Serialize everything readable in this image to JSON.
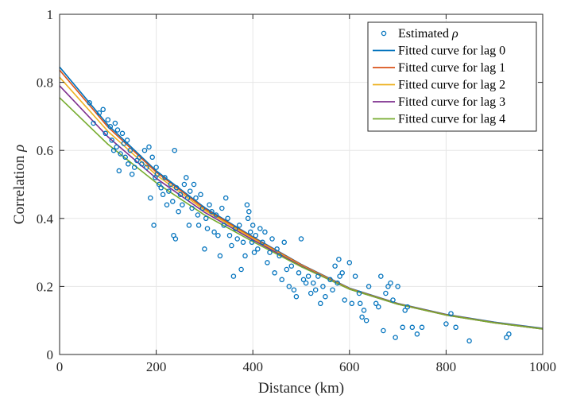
{
  "chart_data": {
    "type": "scatter",
    "xlabel": "Distance (km)",
    "ylabel_prefix": "Correlation ",
    "ylabel_symbol": "ρ",
    "xlim": [
      0,
      1000
    ],
    "ylim": [
      0,
      1
    ],
    "x_ticks": [
      "0",
      "200",
      "400",
      "600",
      "800",
      "1000"
    ],
    "y_ticks": [
      "0",
      "0.2",
      "0.4",
      "0.6",
      "0.8",
      "1"
    ],
    "grid": true,
    "legend_position": "top-right",
    "legend": [
      {
        "label_prefix": "Estimated ",
        "label_symbol": "ρ",
        "kind": "marker",
        "color": "#0072BD"
      },
      {
        "label_prefix": "Fitted curve for lag 0",
        "label_symbol": "",
        "kind": "line",
        "color": "#0072BD"
      },
      {
        "label_prefix": "Fitted curve for lag 1",
        "label_symbol": "",
        "kind": "line",
        "color": "#D95319"
      },
      {
        "label_prefix": "Fitted curve for lag 2",
        "label_symbol": "",
        "kind": "line",
        "color": "#EDB120"
      },
      {
        "label_prefix": "Fitted curve for lag 3",
        "label_symbol": "",
        "kind": "line",
        "color": "#7E2F8E"
      },
      {
        "label_prefix": "Fitted curve for lag 4",
        "label_symbol": "",
        "kind": "line",
        "color": "#77AC30"
      }
    ],
    "curves": [
      {
        "color": "#0072BD",
        "points": [
          [
            0,
            0.845
          ],
          [
            100,
            0.675
          ],
          [
            200,
            0.54
          ],
          [
            300,
            0.432
          ],
          [
            400,
            0.346
          ],
          [
            500,
            0.265
          ],
          [
            600,
            0.195
          ],
          [
            700,
            0.15
          ],
          [
            800,
            0.118
          ],
          [
            900,
            0.095
          ],
          [
            1000,
            0.077
          ]
        ]
      },
      {
        "color": "#D95319",
        "points": [
          [
            0,
            0.836
          ],
          [
            100,
            0.669
          ],
          [
            200,
            0.536
          ],
          [
            300,
            0.429
          ],
          [
            400,
            0.344
          ],
          [
            500,
            0.264
          ],
          [
            600,
            0.194
          ],
          [
            700,
            0.149
          ],
          [
            800,
            0.117
          ],
          [
            900,
            0.094
          ],
          [
            1000,
            0.076
          ]
        ]
      },
      {
        "color": "#EDB120",
        "points": [
          [
            0,
            0.815
          ],
          [
            100,
            0.656
          ],
          [
            200,
            0.528
          ],
          [
            300,
            0.424
          ],
          [
            400,
            0.341
          ],
          [
            500,
            0.262
          ],
          [
            600,
            0.193
          ],
          [
            700,
            0.148
          ],
          [
            800,
            0.116
          ],
          [
            900,
            0.093
          ],
          [
            1000,
            0.075
          ]
        ]
      },
      {
        "color": "#7E2F8E",
        "points": [
          [
            0,
            0.79
          ],
          [
            100,
            0.64
          ],
          [
            200,
            0.518
          ],
          [
            300,
            0.418
          ],
          [
            400,
            0.337
          ],
          [
            500,
            0.26
          ],
          [
            600,
            0.192
          ],
          [
            700,
            0.148
          ],
          [
            800,
            0.116
          ],
          [
            900,
            0.093
          ],
          [
            1000,
            0.075
          ]
        ]
      },
      {
        "color": "#77AC30",
        "points": [
          [
            0,
            0.755
          ],
          [
            100,
            0.618
          ],
          [
            200,
            0.505
          ],
          [
            300,
            0.41
          ],
          [
            400,
            0.332
          ],
          [
            500,
            0.258
          ],
          [
            600,
            0.192
          ],
          [
            700,
            0.148
          ],
          [
            800,
            0.116
          ],
          [
            900,
            0.093
          ],
          [
            1000,
            0.075
          ]
        ]
      }
    ],
    "scatter_color": "#0072BD",
    "scatter": [
      [
        62,
        0.74
      ],
      [
        70,
        0.68
      ],
      [
        82,
        0.71
      ],
      [
        90,
        0.72
      ],
      [
        95,
        0.65
      ],
      [
        100,
        0.69
      ],
      [
        105,
        0.67
      ],
      [
        108,
        0.63
      ],
      [
        112,
        0.6
      ],
      [
        115,
        0.68
      ],
      [
        118,
        0.61
      ],
      [
        120,
        0.66
      ],
      [
        123,
        0.54
      ],
      [
        126,
        0.59
      ],
      [
        130,
        0.65
      ],
      [
        133,
        0.62
      ],
      [
        136,
        0.58
      ],
      [
        140,
        0.63
      ],
      [
        142,
        0.56
      ],
      [
        146,
        0.6
      ],
      [
        150,
        0.53
      ],
      [
        155,
        0.55
      ],
      [
        160,
        0.57
      ],
      [
        165,
        0.58
      ],
      [
        170,
        0.56
      ],
      [
        176,
        0.6
      ],
      [
        180,
        0.55
      ],
      [
        185,
        0.61
      ],
      [
        188,
        0.46
      ],
      [
        192,
        0.58
      ],
      [
        195,
        0.38
      ],
      [
        198,
        0.52
      ],
      [
        200,
        0.55
      ],
      [
        202,
        0.53
      ],
      [
        206,
        0.5
      ],
      [
        210,
        0.49
      ],
      [
        214,
        0.47
      ],
      [
        218,
        0.52
      ],
      [
        222,
        0.44
      ],
      [
        226,
        0.48
      ],
      [
        230,
        0.5
      ],
      [
        234,
        0.45
      ],
      [
        236,
        0.35
      ],
      [
        238,
        0.6
      ],
      [
        240,
        0.34
      ],
      [
        242,
        0.49
      ],
      [
        246,
        0.42
      ],
      [
        250,
        0.47
      ],
      [
        254,
        0.44
      ],
      [
        258,
        0.5
      ],
      [
        262,
        0.52
      ],
      [
        265,
        0.46
      ],
      [
        268,
        0.38
      ],
      [
        270,
        0.48
      ],
      [
        274,
        0.43
      ],
      [
        278,
        0.5
      ],
      [
        282,
        0.46
      ],
      [
        286,
        0.41
      ],
      [
        288,
        0.38
      ],
      [
        292,
        0.47
      ],
      [
        296,
        0.43
      ],
      [
        300,
        0.31
      ],
      [
        303,
        0.4
      ],
      [
        306,
        0.37
      ],
      [
        310,
        0.44
      ],
      [
        315,
        0.42
      ],
      [
        320,
        0.36
      ],
      [
        324,
        0.41
      ],
      [
        328,
        0.35
      ],
      [
        332,
        0.29
      ],
      [
        336,
        0.43
      ],
      [
        340,
        0.38
      ],
      [
        344,
        0.46
      ],
      [
        348,
        0.4
      ],
      [
        352,
        0.35
      ],
      [
        356,
        0.32
      ],
      [
        360,
        0.23
      ],
      [
        364,
        0.37
      ],
      [
        368,
        0.34
      ],
      [
        372,
        0.38
      ],
      [
        376,
        0.25
      ],
      [
        380,
        0.33
      ],
      [
        384,
        0.29
      ],
      [
        388,
        0.44
      ],
      [
        390,
        0.4
      ],
      [
        392,
        0.42
      ],
      [
        395,
        0.36
      ],
      [
        398,
        0.33
      ],
      [
        400,
        0.38
      ],
      [
        403,
        0.3
      ],
      [
        406,
        0.35
      ],
      [
        410,
        0.31
      ],
      [
        415,
        0.37
      ],
      [
        420,
        0.33
      ],
      [
        425,
        0.36
      ],
      [
        430,
        0.27
      ],
      [
        435,
        0.3
      ],
      [
        440,
        0.34
      ],
      [
        445,
        0.24
      ],
      [
        450,
        0.31
      ],
      [
        455,
        0.29
      ],
      [
        460,
        0.22
      ],
      [
        465,
        0.33
      ],
      [
        470,
        0.25
      ],
      [
        475,
        0.2
      ],
      [
        480,
        0.26
      ],
      [
        485,
        0.19
      ],
      [
        490,
        0.17
      ],
      [
        495,
        0.24
      ],
      [
        500,
        0.34
      ],
      [
        505,
        0.22
      ],
      [
        510,
        0.21
      ],
      [
        515,
        0.23
      ],
      [
        520,
        0.18
      ],
      [
        525,
        0.21
      ],
      [
        530,
        0.19
      ],
      [
        535,
        0.23
      ],
      [
        540,
        0.15
      ],
      [
        545,
        0.2
      ],
      [
        550,
        0.17
      ],
      [
        560,
        0.22
      ],
      [
        565,
        0.19
      ],
      [
        570,
        0.26
      ],
      [
        575,
        0.21
      ],
      [
        578,
        0.28
      ],
      [
        580,
        0.23
      ],
      [
        585,
        0.24
      ],
      [
        590,
        0.16
      ],
      [
        600,
        0.27
      ],
      [
        605,
        0.15
      ],
      [
        612,
        0.23
      ],
      [
        620,
        0.18
      ],
      [
        622,
        0.15
      ],
      [
        626,
        0.11
      ],
      [
        630,
        0.13
      ],
      [
        635,
        0.1
      ],
      [
        640,
        0.2
      ],
      [
        655,
        0.15
      ],
      [
        660,
        0.14
      ],
      [
        665,
        0.23
      ],
      [
        670,
        0.07
      ],
      [
        675,
        0.18
      ],
      [
        680,
        0.2
      ],
      [
        685,
        0.21
      ],
      [
        690,
        0.16
      ],
      [
        695,
        0.05
      ],
      [
        700,
        0.2
      ],
      [
        710,
        0.08
      ],
      [
        715,
        0.13
      ],
      [
        720,
        0.14
      ],
      [
        730,
        0.08
      ],
      [
        740,
        0.06
      ],
      [
        750,
        0.08
      ],
      [
        800,
        0.09
      ],
      [
        810,
        0.12
      ],
      [
        820,
        0.08
      ],
      [
        848,
        0.04
      ],
      [
        925,
        0.05
      ],
      [
        930,
        0.06
      ]
    ]
  }
}
